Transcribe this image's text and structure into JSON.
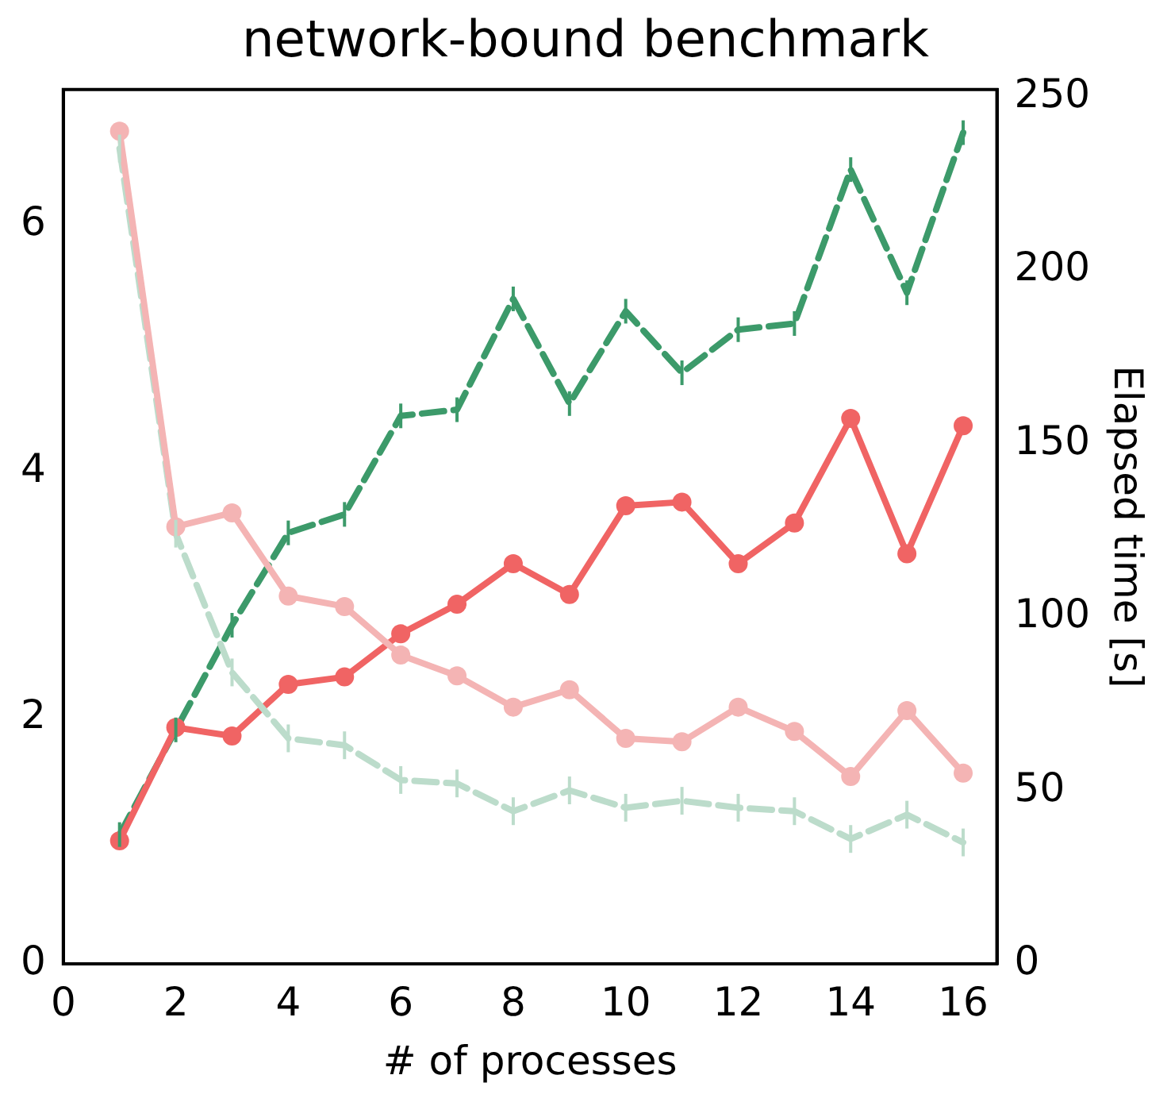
{
  "chart_data": {
    "type": "line",
    "title": "network-bound benchmark",
    "xlabel": "# of processes",
    "y2label": "Elapsed time [s]",
    "x": [
      1,
      2,
      3,
      4,
      5,
      6,
      7,
      8,
      9,
      10,
      11,
      12,
      13,
      14,
      15,
      16
    ],
    "xlim": [
      0,
      16.6
    ],
    "xticks": [
      0,
      2,
      4,
      6,
      8,
      10,
      12,
      14,
      16
    ],
    "ylim": [
      0,
      7.1
    ],
    "yticks": [
      0,
      2,
      4,
      6
    ],
    "y2lim": [
      0,
      252
    ],
    "y2ticks": [
      0,
      50,
      100,
      150,
      200,
      250
    ],
    "grid": false,
    "legend": false,
    "series": [
      {
        "color": "#f4b4b4",
        "axis": "y2",
        "marker": "circle",
        "line_style": "solid",
        "values": [
          240,
          126,
          130,
          106,
          103,
          89,
          83,
          74,
          79,
          65,
          64,
          74,
          67,
          54,
          73,
          55
        ]
      },
      {
        "color": "#bcdccb",
        "axis": "y2",
        "marker": "none",
        "line_style": "dashed",
        "values": [
          235,
          124,
          84,
          65,
          63,
          53,
          52,
          44,
          50,
          45,
          47,
          45,
          44,
          36,
          43,
          35
        ],
        "errors": [
          4,
          4,
          4,
          4,
          4,
          4,
          4,
          4,
          4,
          4,
          4,
          4,
          4,
          4,
          4,
          4
        ]
      },
      {
        "color": "#f06464",
        "marker": "circle",
        "line_style": "solid",
        "values": [
          1.0,
          1.92,
          1.85,
          2.27,
          2.33,
          2.68,
          2.92,
          3.25,
          3.0,
          3.72,
          3.75,
          3.25,
          3.58,
          4.43,
          3.33,
          4.37
        ]
      },
      {
        "color": "#3c9a6a",
        "marker": "none",
        "line_style": "dashed",
        "values": [
          1.05,
          1.9,
          2.75,
          3.5,
          3.65,
          4.45,
          4.5,
          5.4,
          4.55,
          5.3,
          4.8,
          5.15,
          5.2,
          6.45,
          5.45,
          6.75
        ],
        "errors": [
          0.1,
          0.1,
          0.1,
          0.1,
          0.1,
          0.1,
          0.1,
          0.1,
          0.1,
          0.1,
          0.1,
          0.1,
          0.1,
          0.1,
          0.1,
          0.1
        ]
      }
    ]
  }
}
